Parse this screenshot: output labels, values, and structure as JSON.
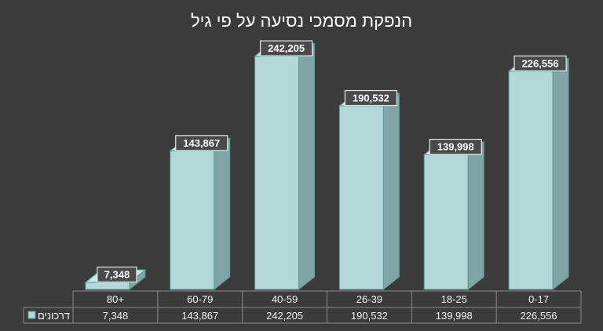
{
  "chart_data": {
    "type": "bar",
    "title": "הנפקת מסמכי נסיעה על פי גיל",
    "categories": [
      "0-17",
      "18-25",
      "26-39",
      "40-59",
      "60-79",
      "80+"
    ],
    "series": [
      {
        "name": "דרכונים",
        "values": [
          226556,
          139998,
          190532,
          242205,
          143867,
          7348
        ]
      }
    ],
    "data_labels": [
      "226,556",
      "139,998",
      "190,532",
      "242,205",
      "143,867",
      "7,348"
    ],
    "table_values": [
      "226,556",
      "139,998",
      "190,532",
      "242,205",
      "143,867",
      "7,348"
    ],
    "ylim": [
      0,
      250000
    ],
    "legend": "data-table",
    "grid": false,
    "colors": {
      "background": "#3b3b3b",
      "bar_front": "#b2d8d8",
      "bar_side": "#7fa5a5",
      "bar_top": "#c9e6e6",
      "bar_edge": "#5d9898",
      "label_fill": "#4a4a4a",
      "table_line": "#8a8a8a"
    }
  }
}
